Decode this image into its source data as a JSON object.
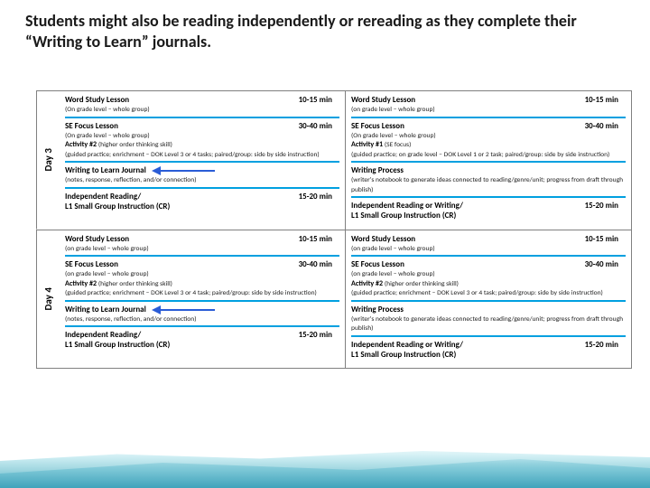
{
  "header": "Students might also be reading independently or rereading as they complete their “Writing to Learn” journals.",
  "days": [
    {
      "label": "Day 3",
      "left": {
        "word_study": {
          "title": "Word Study Lesson",
          "sub": "(On grade level – whole group)",
          "time": "10-15 min"
        },
        "focus": {
          "title": "SE Focus Lesson",
          "sub1": "(On grade level – whole group)",
          "activity": "Activity #2",
          "activity_note": "(higher order thinking skill)",
          "detail": "(guided practice; enrichment – DOK Level 3 or 4 tasks; paired/group: side by side instruction)",
          "time": "30-40 min"
        },
        "journal": {
          "title": "Writing to Learn Journal",
          "sub": "(notes, response, reflection, and/or connection)",
          "arrow": true
        },
        "independent": {
          "title": "Independent Reading/",
          "sub_title": "L1 Small Group Instruction (CR)",
          "time": "15-20 min"
        }
      },
      "right": {
        "word_study": {
          "title": "Word Study Lesson",
          "sub": "(on grade level – whole group)",
          "time": "10-15 min"
        },
        "focus": {
          "title": "SE Focus Lesson",
          "sub1": "(On grade level – whole group)",
          "activity": "Activity #1",
          "activity_note": "(SE focus)",
          "detail": "(guided practice; on grade level – DOK Level 1 or 2 task; paired/group: side by side instruction)",
          "time": "30-40 min"
        },
        "process": {
          "title": "Writing Process",
          "sub": "(writer's notebook to generate ideas connected to reading/genre/unit; progress from draft through publish)"
        },
        "independent": {
          "title": "Independent Reading or Writing/",
          "sub_title": "L1 Small Group Instruction (CR)",
          "time": "15-20 min"
        }
      }
    },
    {
      "label": "Day 4",
      "left": {
        "word_study": {
          "title": "Word Study Lesson",
          "sub": "(on grade level – whole group)",
          "time": "10-15 min"
        },
        "focus": {
          "title": "SE Focus Lesson",
          "sub1": "(on grade level – whole group)",
          "activity": "Activity #2",
          "activity_note": "(higher order thinking skill)",
          "detail": "(guided practice; enrichment – DOK Level 3 or 4 task; paired/group: side by side instruction)",
          "time": "30-40 min"
        },
        "journal": {
          "title": "Writing to Learn Journal",
          "sub": "(notes, response, reflection, and/or connection)",
          "arrow": true
        },
        "independent": {
          "title": "Independent Reading/",
          "sub_title": "L1 Small Group Instruction (CR)",
          "time": "15-20 min"
        }
      },
      "right": {
        "word_study": {
          "title": "Word Study Lesson",
          "sub": "(on grade level – whole group)",
          "time": "10-15 min"
        },
        "focus": {
          "title": "SE Focus Lesson",
          "sub1": "(on grade level – whole group)",
          "activity": "Activity #2",
          "activity_note": "(higher order thinking skill)",
          "detail": "(guided practice; enrichment – DOK Level 3 or 4 task; paired/group: side by side instruction)",
          "time": "30-40 min"
        },
        "process": {
          "title": "Writing Process",
          "sub": "(writer's notebook to generate ideas connected to reading/genre/unit; progress from draft through publish)"
        },
        "independent": {
          "title": "Independent Reading or Writing/",
          "sub_title": "L1 Small Group Instruction (CR)",
          "time": "15-20 min"
        }
      }
    }
  ],
  "colors": {
    "accent": "#00a0e0",
    "arrow": "#2a5cd6",
    "border": "#808080"
  }
}
